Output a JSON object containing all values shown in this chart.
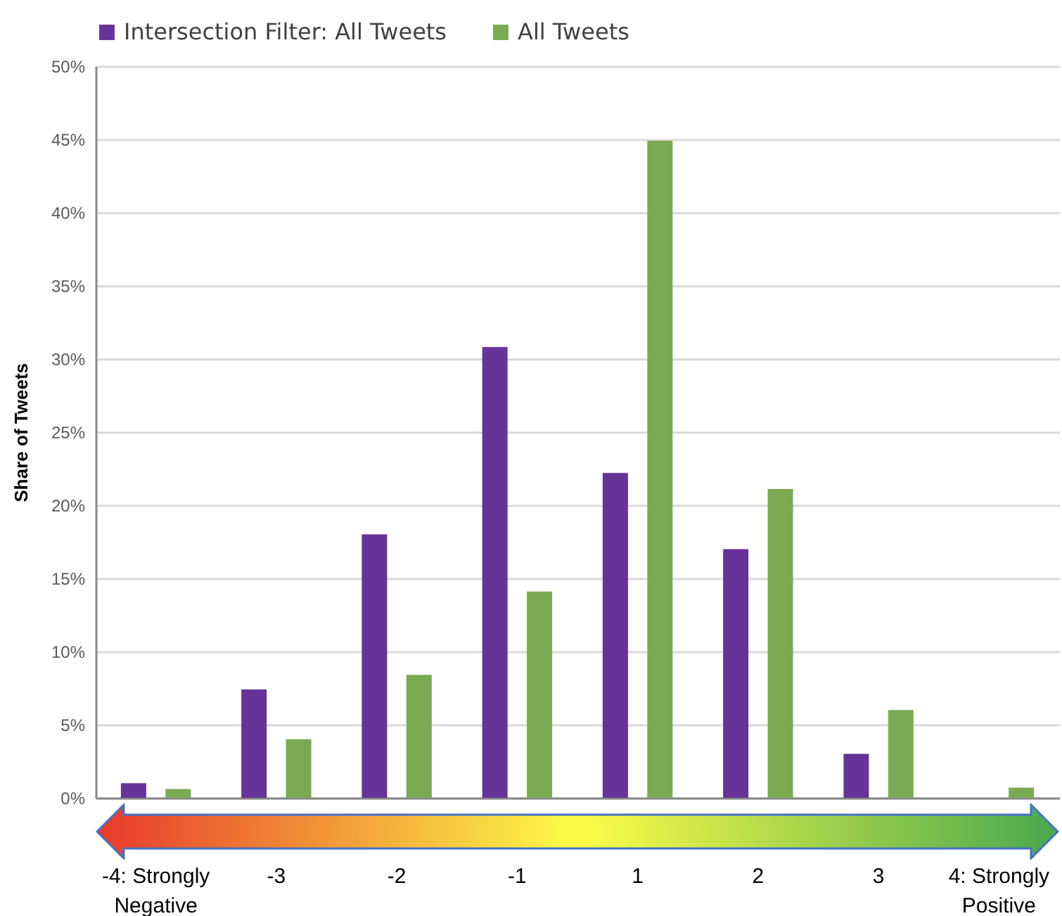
{
  "chart_data": {
    "type": "bar",
    "ylabel": "Share of Tweets",
    "categories": [
      "-4: Strongly Negative",
      "-3",
      "-2",
      "-1",
      "1",
      "2",
      "3",
      "4: Strongly Positive"
    ],
    "series": [
      {
        "name": "Intersection Filter: All Tweets",
        "color": "#663399",
        "values": [
          1.0,
          7.4,
          18.0,
          30.8,
          22.2,
          17.0,
          3.0,
          0
        ]
      },
      {
        "name": "All Tweets",
        "color": "#7aab52",
        "values": [
          0.6,
          4.0,
          8.4,
          14.1,
          44.9,
          21.1,
          6.0,
          0.7
        ]
      }
    ],
    "ylim": [
      0,
      50
    ],
    "yticks": [
      {
        "value": 0,
        "label": "0%"
      },
      {
        "value": 5,
        "label": "5%"
      },
      {
        "value": 10,
        "label": "10%"
      },
      {
        "value": 15,
        "label": "15%"
      },
      {
        "value": 20,
        "label": "20%"
      },
      {
        "value": 25,
        "label": "25%"
      },
      {
        "value": 30,
        "label": "30%"
      },
      {
        "value": 35,
        "label": "35%"
      },
      {
        "value": 40,
        "label": "40%"
      },
      {
        "value": 45,
        "label": "45%"
      },
      {
        "value": 50,
        "label": "50%"
      }
    ],
    "grid": "y",
    "legend": "top"
  }
}
